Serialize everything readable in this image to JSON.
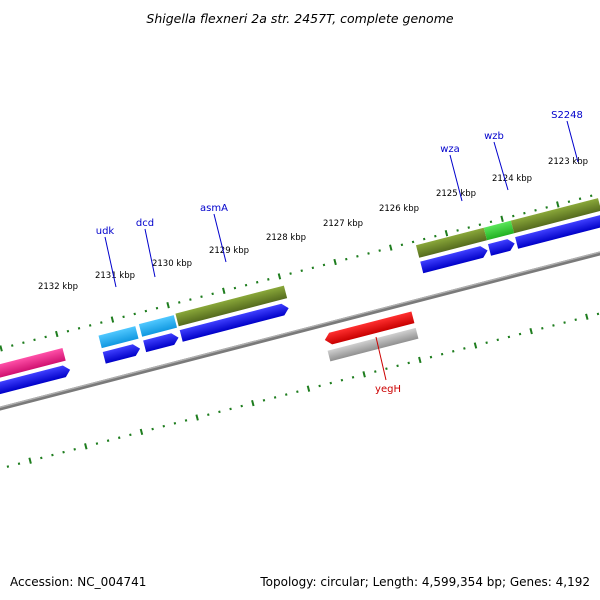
{
  "title": "Shigella flexneri 2a str. 2457T, complete genome",
  "footer": {
    "accession": "Accession: NC_004741",
    "summary": "Topology: circular; Length: 4,599,354 bp; Genes: 4,192"
  },
  "tick_labels": [
    "2132 kbp",
    "2131 kbp",
    "2130 kbp",
    "2129 kbp",
    "2128 kbp",
    "2127 kbp",
    "2126 kbp",
    "2125 kbp",
    "2124 kbp",
    "2123 kbp"
  ],
  "gene_labels": [
    "udk",
    "dcd",
    "asmA",
    "wza",
    "wzb",
    "S2248",
    "yegH"
  ],
  "colors": {
    "backbone": "#808080",
    "tick": "#1e7d1e",
    "cds": "#0000e6",
    "light_blue_gene": "#1eaaf0",
    "olive_gene": "#6b8e23",
    "green_gene": "#32cd32",
    "pink_gene": "#e6147d",
    "red_gene": "#e60000",
    "grey_gene": "#a0a0a0",
    "forward_label": "#0000cc",
    "reverse_label": "#cc0000"
  }
}
